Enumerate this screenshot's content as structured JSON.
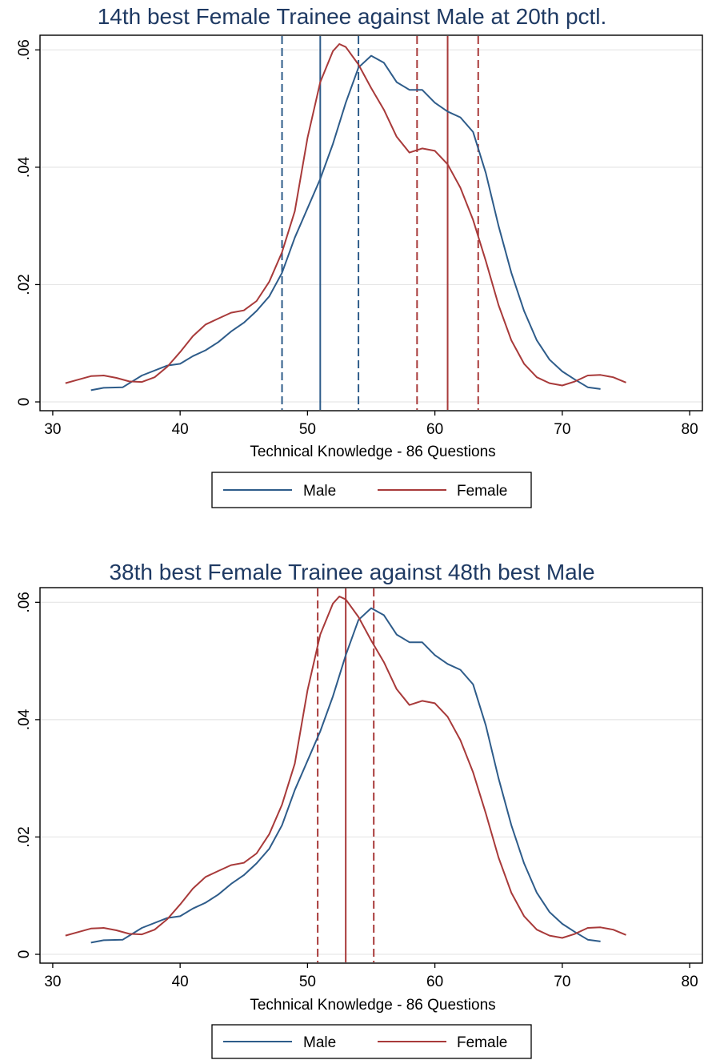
{
  "colors": {
    "male": "#2e5c8a",
    "female": "#a83a3a",
    "title": "#1f3a63",
    "grid": "#e6e6e6"
  },
  "chart_data": [
    {
      "type": "line",
      "title": "14th best Female Trainee against Male at 20th pctl.",
      "xlabel": "Technical Knowledge - 86 Questions",
      "ylabel": "",
      "xlim": [
        29,
        81
      ],
      "ylim": [
        -0.0015,
        0.0625
      ],
      "xticks": [
        30,
        40,
        50,
        60,
        70,
        80
      ],
      "yticks": [
        0,
        0.02,
        0.04,
        0.06
      ],
      "ytick_labels": [
        "0",
        ".02",
        ".04",
        ".06"
      ],
      "grid": true,
      "legend": {
        "position": "bottom",
        "entries": [
          "Male",
          "Female"
        ]
      },
      "series": [
        {
          "name": "Male",
          "color": "#2e5c8a",
          "x": [
            33,
            34,
            35.5,
            37,
            39,
            40,
            41,
            42,
            43,
            44,
            45,
            46,
            47,
            48,
            49,
            50,
            51,
            52,
            53,
            54,
            55,
            56,
            57,
            58,
            59,
            60,
            61,
            62,
            63,
            64,
            65,
            66,
            67,
            68,
            69,
            70,
            71,
            72,
            73
          ],
          "y": [
            0.002,
            0.0024,
            0.0025,
            0.0045,
            0.0062,
            0.0065,
            0.0078,
            0.0088,
            0.0102,
            0.012,
            0.0135,
            0.0155,
            0.018,
            0.022,
            0.028,
            0.033,
            0.038,
            0.044,
            0.051,
            0.057,
            0.059,
            0.0578,
            0.0545,
            0.0532,
            0.0532,
            0.051,
            0.0495,
            0.0485,
            0.046,
            0.039,
            0.03,
            0.022,
            0.0155,
            0.0105,
            0.0072,
            0.0052,
            0.0038,
            0.0025,
            0.0022
          ]
        },
        {
          "name": "Female",
          "color": "#a83a3a",
          "x": [
            31,
            32,
            33,
            34,
            35,
            36,
            37,
            38,
            39,
            40,
            41,
            42,
            43,
            44,
            45,
            46,
            47,
            48,
            49,
            50,
            51,
            52,
            52.5,
            53,
            54,
            55,
            56,
            57,
            58,
            59,
            60,
            61,
            62,
            63,
            64,
            65,
            66,
            67,
            68,
            69,
            70,
            71,
            72,
            73,
            74,
            75
          ],
          "y": [
            0.0032,
            0.0038,
            0.0044,
            0.0045,
            0.0041,
            0.0035,
            0.0034,
            0.0042,
            0.006,
            0.0085,
            0.0112,
            0.0132,
            0.0142,
            0.0152,
            0.0156,
            0.0172,
            0.0205,
            0.0255,
            0.0325,
            0.045,
            0.0545,
            0.0598,
            0.061,
            0.0605,
            0.0575,
            0.0535,
            0.0498,
            0.0452,
            0.0425,
            0.0432,
            0.0428,
            0.0405,
            0.0365,
            0.031,
            0.024,
            0.0165,
            0.0105,
            0.0065,
            0.0042,
            0.0032,
            0.0028,
            0.0035,
            0.0045,
            0.0046,
            0.0042,
            0.0033
          ]
        }
      ],
      "vlines": [
        {
          "x": 48,
          "series": "Male",
          "dash": true
        },
        {
          "x": 51,
          "series": "Male",
          "dash": false
        },
        {
          "x": 54,
          "series": "Male",
          "dash": true
        },
        {
          "x": 58.6,
          "series": "Female",
          "dash": true
        },
        {
          "x": 61,
          "series": "Female",
          "dash": false
        },
        {
          "x": 63.4,
          "series": "Female",
          "dash": true
        }
      ]
    },
    {
      "type": "line",
      "title": "38th best Female Trainee against 48th best Male",
      "xlabel": "Technical Knowledge - 86 Questions",
      "ylabel": "",
      "xlim": [
        29,
        81
      ],
      "ylim": [
        -0.0015,
        0.0625
      ],
      "xticks": [
        30,
        40,
        50,
        60,
        70,
        80
      ],
      "yticks": [
        0,
        0.02,
        0.04,
        0.06
      ],
      "ytick_labels": [
        "0",
        ".02",
        ".04",
        ".06"
      ],
      "grid": true,
      "legend": {
        "position": "bottom",
        "entries": [
          "Male",
          "Female"
        ]
      },
      "series": [
        {
          "name": "Male",
          "color": "#2e5c8a",
          "x": [
            33,
            34,
            35.5,
            37,
            39,
            40,
            41,
            42,
            43,
            44,
            45,
            46,
            47,
            48,
            49,
            50,
            51,
            52,
            53,
            54,
            55,
            56,
            57,
            58,
            59,
            60,
            61,
            62,
            63,
            64,
            65,
            66,
            67,
            68,
            69,
            70,
            71,
            72,
            73
          ],
          "y": [
            0.002,
            0.0024,
            0.0025,
            0.0045,
            0.0062,
            0.0065,
            0.0078,
            0.0088,
            0.0102,
            0.012,
            0.0135,
            0.0155,
            0.018,
            0.022,
            0.028,
            0.033,
            0.038,
            0.044,
            0.051,
            0.057,
            0.059,
            0.0578,
            0.0545,
            0.0532,
            0.0532,
            0.051,
            0.0495,
            0.0485,
            0.046,
            0.039,
            0.03,
            0.022,
            0.0155,
            0.0105,
            0.0072,
            0.0052,
            0.0038,
            0.0025,
            0.0022
          ]
        },
        {
          "name": "Female",
          "color": "#a83a3a",
          "x": [
            31,
            32,
            33,
            34,
            35,
            36,
            37,
            38,
            39,
            40,
            41,
            42,
            43,
            44,
            45,
            46,
            47,
            48,
            49,
            50,
            51,
            52,
            52.5,
            53,
            54,
            55,
            56,
            57,
            58,
            59,
            60,
            61,
            62,
            63,
            64,
            65,
            66,
            67,
            68,
            69,
            70,
            71,
            72,
            73,
            74,
            75
          ],
          "y": [
            0.0032,
            0.0038,
            0.0044,
            0.0045,
            0.0041,
            0.0035,
            0.0034,
            0.0042,
            0.006,
            0.0085,
            0.0112,
            0.0132,
            0.0142,
            0.0152,
            0.0156,
            0.0172,
            0.0205,
            0.0255,
            0.0325,
            0.045,
            0.0545,
            0.0598,
            0.061,
            0.0605,
            0.0575,
            0.0535,
            0.0498,
            0.0452,
            0.0425,
            0.0432,
            0.0428,
            0.0405,
            0.0365,
            0.031,
            0.024,
            0.0165,
            0.0105,
            0.0065,
            0.0042,
            0.0032,
            0.0028,
            0.0035,
            0.0045,
            0.0046,
            0.0042,
            0.0033
          ]
        }
      ],
      "vlines": [
        {
          "x": 50.8,
          "series": "Female",
          "dash": true
        },
        {
          "x": 53,
          "series": "Female",
          "dash": false
        },
        {
          "x": 55.2,
          "series": "Female",
          "dash": true
        }
      ]
    }
  ]
}
